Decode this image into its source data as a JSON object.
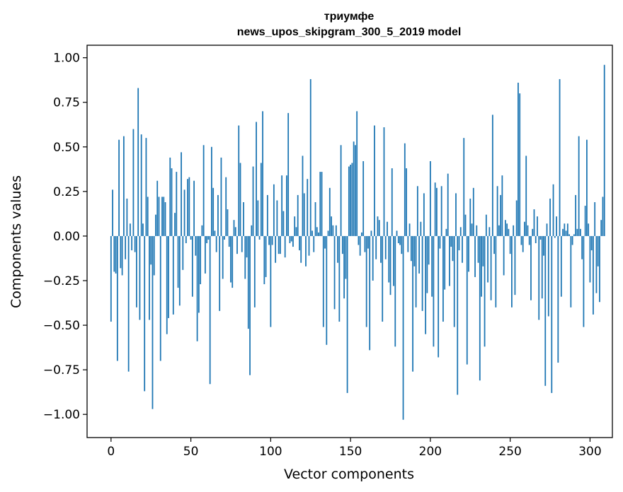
{
  "chart_data": {
    "type": "bar",
    "title": "триумфе",
    "subtitle": "news_upos_skipgram_300_5_2019 model",
    "xlabel": "Vector components",
    "ylabel": "Components values",
    "xlim": [
      -15,
      314
    ],
    "ylim": [
      -1.13,
      1.07
    ],
    "x_ticks": [
      0,
      50,
      100,
      150,
      200,
      250,
      300
    ],
    "x_tick_labels": [
      "0",
      "50",
      "100",
      "150",
      "200",
      "250",
      "300"
    ],
    "y_ticks": [
      1.0,
      0.75,
      0.5,
      0.25,
      0.0,
      -0.25,
      -0.5,
      -0.75,
      -1.0
    ],
    "y_tick_labels": [
      "1.00",
      "0.75",
      "0.50",
      "0.25",
      "0.00",
      "−0.25",
      "−0.50",
      "−0.75",
      "−1.00"
    ],
    "bar_color": "#1f77b4",
    "values": [
      -0.48,
      0.26,
      -0.2,
      -0.21,
      -0.7,
      0.54,
      -0.18,
      -0.22,
      0.56,
      -0.13,
      0.21,
      -0.76,
      0.07,
      -0.08,
      0.6,
      -0.09,
      -0.4,
      0.83,
      -0.47,
      0.57,
      0.07,
      -0.87,
      0.55,
      0.22,
      -0.47,
      -0.16,
      -0.97,
      -0.22,
      0.12,
      0.31,
      0.22,
      -0.7,
      0.22,
      0.22,
      0.19,
      -0.55,
      -0.46,
      0.44,
      0.38,
      -0.44,
      0.13,
      0.36,
      -0.29,
      -0.39,
      0.47,
      -0.19,
      0.26,
      -0.04,
      0.32,
      0.33,
      -0.02,
      -0.34,
      0.31,
      -0.11,
      -0.59,
      -0.43,
      -0.27,
      0.06,
      0.51,
      -0.21,
      -0.04,
      -0.02,
      -0.83,
      0.5,
      0.27,
      0.03,
      -0.09,
      0.23,
      -0.42,
      0.44,
      -0.24,
      -0.02,
      0.33,
      0.15,
      -0.06,
      -0.26,
      -0.29,
      0.09,
      0.05,
      -0.1,
      0.62,
      0.41,
      -0.09,
      0.19,
      -0.24,
      -0.12,
      -0.52,
      -0.78,
      0.06,
      0.39,
      -0.4,
      0.64,
      0.2,
      -0.02,
      0.41,
      0.7,
      -0.27,
      -0.23,
      0.23,
      -0.05,
      -0.51,
      -0.05,
      0.29,
      -0.15,
      0.2,
      -0.1,
      -0.1,
      0.34,
      0.14,
      -0.12,
      0.34,
      0.69,
      -0.04,
      -0.03,
      -0.06,
      0.11,
      0.05,
      0.23,
      -0.08,
      -0.15,
      0.45,
      0.24,
      -0.17,
      0.32,
      -0.11,
      0.88,
      0.03,
      -0.09,
      0.19,
      0.05,
      0.02,
      0.36,
      0.36,
      -0.51,
      -0.07,
      -0.61,
      0.03,
      0.27,
      0.11,
      0.06,
      -0.41,
      0.06,
      -0.15,
      -0.48,
      0.51,
      -0.1,
      -0.35,
      -0.24,
      -0.88,
      0.39,
      0.4,
      0.41,
      0.53,
      0.51,
      0.7,
      -0.05,
      -0.11,
      0.02,
      0.42,
      -0.09,
      -0.51,
      -0.07,
      -0.64,
      0.03,
      -0.25,
      0.62,
      -0.13,
      0.11,
      0.09,
      -0.15,
      -0.48,
      0.61,
      -0.13,
      0.08,
      -0.26,
      -0.33,
      0.38,
      -0.28,
      -0.62,
      0.03,
      -0.04,
      -0.05,
      -0.1,
      -1.03,
      0.52,
      0.38,
      -0.09,
      0.07,
      -0.14,
      -0.76,
      -0.17,
      -0.4,
      0.28,
      -0.21,
      0.08,
      -0.42,
      0.24,
      -0.55,
      -0.32,
      -0.16,
      0.42,
      -0.34,
      -0.62,
      0.3,
      0.27,
      -0.68,
      -0.07,
      0.28,
      -0.48,
      -0.3,
      0.04,
      0.35,
      -0.28,
      -0.06,
      -0.14,
      -0.51,
      0.24,
      -0.89,
      -0.08,
      0.05,
      -0.15,
      0.55,
      0.12,
      -0.72,
      -0.2,
      0.21,
      0.07,
      0.27,
      -0.23,
      0.06,
      -0.15,
      -0.81,
      -0.34,
      -0.17,
      -0.62,
      0.12,
      -0.26,
      0.05,
      -0.36,
      0.68,
      -0.1,
      -0.4,
      0.28,
      0.06,
      0.23,
      0.34,
      -0.22,
      0.09,
      0.07,
      0.04,
      -0.1,
      -0.4,
      0.06,
      -0.33,
      0.2,
      0.86,
      0.8,
      -0.05,
      -0.09,
      0.08,
      0.45,
      0.06,
      -0.05,
      -0.36,
      0.04,
      0.15,
      -0.04,
      0.11,
      -0.47,
      -0.02,
      -0.35,
      -0.11,
      -0.84,
      0.07,
      -0.45,
      0.21,
      -0.88,
      0.29,
      -0.01,
      0.11,
      -0.71,
      0.88,
      -0.34,
      0.04,
      0.07,
      0.03,
      0.07,
      0.01,
      -0.4,
      -0.05,
      0.01,
      0.23,
      0.04,
      0.56,
      0.04,
      -0.13,
      -0.51,
      0.17,
      0.54,
      0.07,
      -0.26,
      -0.08,
      -0.44,
      0.19,
      -0.32,
      -0.17,
      -0.37,
      0.09,
      0.22,
      0.96
    ]
  }
}
